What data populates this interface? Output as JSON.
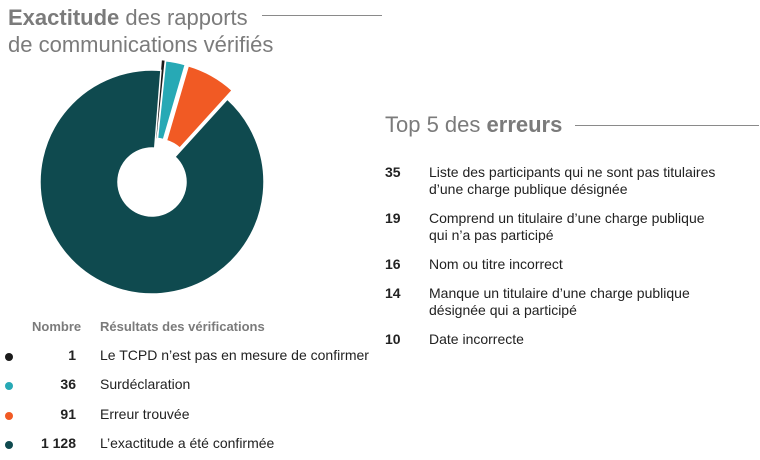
{
  "title": {
    "bold": "Exactitude",
    "rest_line1": " des rapports",
    "line2": "de communications vérifiés"
  },
  "legend": {
    "count_header": "Nombre",
    "result_header": "Résultats des vérifications"
  },
  "chart_data": {
    "type": "pie",
    "style": "donut",
    "categories": [
      "Le TCPD n’est pas en mesure de confirmer",
      "Surdéclaration",
      "Erreur trouvée",
      "L’exactitude a été confirmée"
    ],
    "values": [
      1,
      36,
      91,
      1128
    ],
    "value_labels": [
      "1",
      "36",
      "91",
      "1 128"
    ],
    "colors": [
      "#1a1a1a",
      "#27a9b5",
      "#f15a24",
      "#0f4a4f"
    ]
  },
  "top5": {
    "title_plain": "Top 5 des ",
    "title_bold": "erreurs",
    "items": [
      {
        "count": "35",
        "text": "Liste des participants qui ne sont pas titulaires d’une charge publique désignée"
      },
      {
        "count": "19",
        "text": "Comprend un titulaire d’une charge publique qui n’a pas participé"
      },
      {
        "count": "16",
        "text": "Nom ou titre incorrect"
      },
      {
        "count": "14",
        "text": "Manque un titulaire d’une charge publique désignée qui a participé"
      },
      {
        "count": "10",
        "text": "Date incorrecte"
      }
    ]
  }
}
